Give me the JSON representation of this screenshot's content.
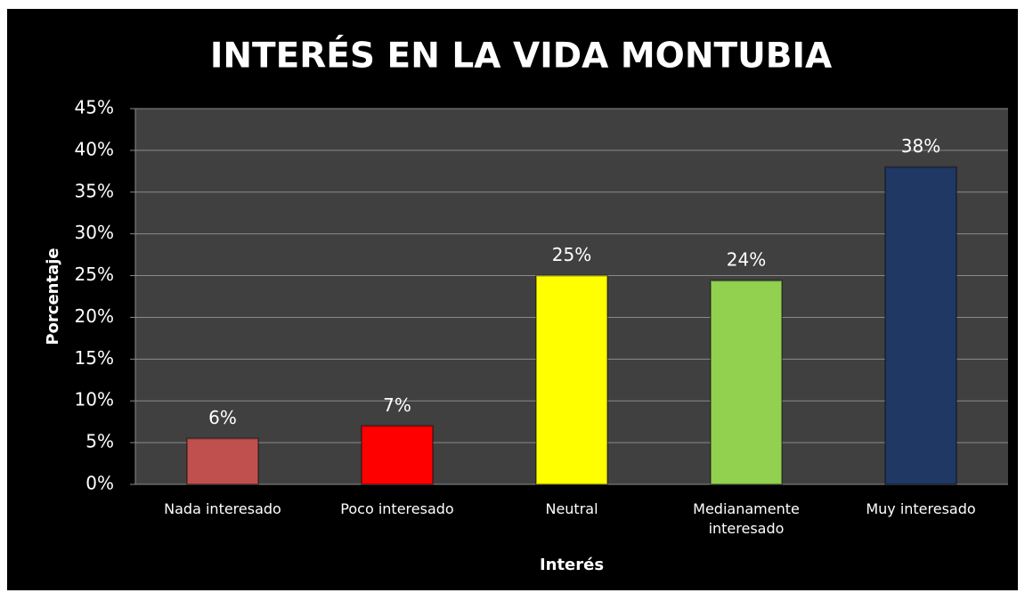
{
  "chart_data": {
    "type": "bar",
    "title": "INTERÉS EN LA VIDA MONTUBIA",
    "x_label": "Interés",
    "y_label": "Porcentaje",
    "categories": [
      "Nada interesado",
      "Poco interesado",
      "Neutral",
      "Medianamente interesado",
      "Muy interesado"
    ],
    "values": [
      5.5,
      7.0,
      25.0,
      24.4,
      38.0
    ],
    "value_labels": [
      "6%",
      "7%",
      "25%",
      "24%",
      "38%"
    ],
    "colors": [
      "#c0504d",
      "#ff0000",
      "#ffff00",
      "#92d050",
      "#1f3864"
    ],
    "ylim": [
      0,
      45
    ],
    "yticks": [
      {
        "value": 0,
        "label": "0%"
      },
      {
        "value": 5,
        "label": "5%"
      },
      {
        "value": 10,
        "label": "10%"
      },
      {
        "value": 15,
        "label": "15%"
      },
      {
        "value": 20,
        "label": "20%"
      },
      {
        "value": 25,
        "label": "25%"
      },
      {
        "value": 30,
        "label": "30%"
      },
      {
        "value": 35,
        "label": "35%"
      },
      {
        "value": 40,
        "label": "40%"
      },
      {
        "value": 45,
        "label": "45%"
      }
    ],
    "grid": true
  }
}
